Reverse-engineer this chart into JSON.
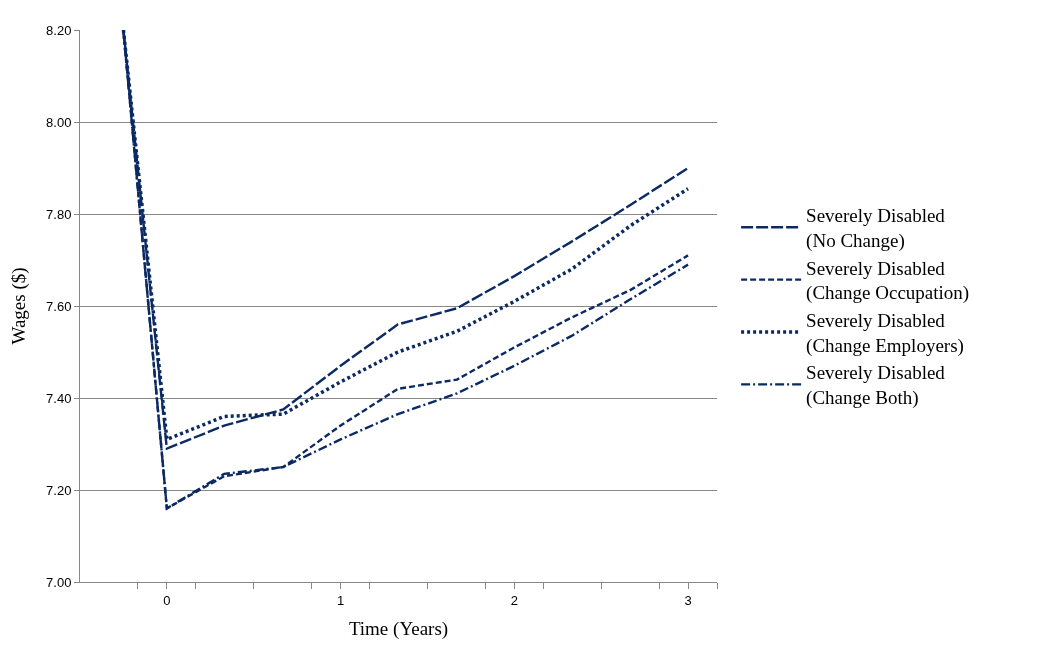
{
  "chart_data": {
    "type": "line",
    "xlabel": "Time (Years)",
    "ylabel": "Wages ($)",
    "x": [
      -0.25,
      0,
      0.33,
      0.67,
      1,
      1.33,
      1.67,
      2,
      2.33,
      2.67,
      3
    ],
    "series": [
      {
        "name": "Severely Disabled\n(No Change)",
        "color": "#0b2a63",
        "line_style": "longdash",
        "values": [
          8.2,
          7.29,
          7.34,
          7.375,
          7.47,
          7.56,
          7.595,
          7.665,
          7.74,
          7.82,
          7.9
        ]
      },
      {
        "name": "Severely Disabled\n(Change Occupation)",
        "color": "#0b2a63",
        "line_style": "dashed",
        "values": [
          8.2,
          7.16,
          7.23,
          7.25,
          7.34,
          7.42,
          7.44,
          7.51,
          7.575,
          7.635,
          7.71
        ]
      },
      {
        "name": "Severely Disabled\n(Change Employers)",
        "color": "#0b2a63",
        "line_style": "dotted",
        "values": [
          8.2,
          7.31,
          7.36,
          7.365,
          7.435,
          7.5,
          7.545,
          7.61,
          7.68,
          7.775,
          7.855
        ]
      },
      {
        "name": "Severely Disabled\n(Change Both)",
        "color": "#0b2a63",
        "line_style": "dashdot",
        "values": [
          8.2,
          7.16,
          7.235,
          7.25,
          7.31,
          7.365,
          7.41,
          7.47,
          7.535,
          7.615,
          7.69
        ]
      }
    ],
    "xlim": [
      -0.5,
      3.1667
    ],
    "xticks": [
      0,
      1,
      2,
      3,
      {
        "value": -0.1667,
        "label": null
      },
      {
        "value": 0.1667,
        "label": null
      },
      {
        "value": 0.5,
        "label": null
      },
      {
        "value": 0.8333,
        "label": null
      },
      {
        "value": 1.1667,
        "label": null
      },
      {
        "value": 1.5,
        "label": null
      },
      {
        "value": 1.8333,
        "label": null
      },
      {
        "value": 2.1667,
        "label": null
      },
      {
        "value": 2.5,
        "label": null
      },
      {
        "value": 2.8333,
        "label": null
      },
      {
        "value": 3.1667,
        "label": null
      }
    ],
    "ylim": [
      7.0,
      8.2
    ],
    "yticks": [
      {
        "value": 7.0,
        "label": "7.00"
      },
      {
        "value": 7.2,
        "label": "7.20"
      },
      {
        "value": 7.4,
        "label": "7.40"
      },
      {
        "value": 7.6,
        "label": "7.60"
      },
      {
        "value": 7.8,
        "label": "7.80"
      },
      {
        "value": 8.0,
        "label": "8.00"
      },
      {
        "value": 8.2,
        "label": "8.20"
      }
    ],
    "grid": "y",
    "legend": "right",
    "marker": "none"
  }
}
